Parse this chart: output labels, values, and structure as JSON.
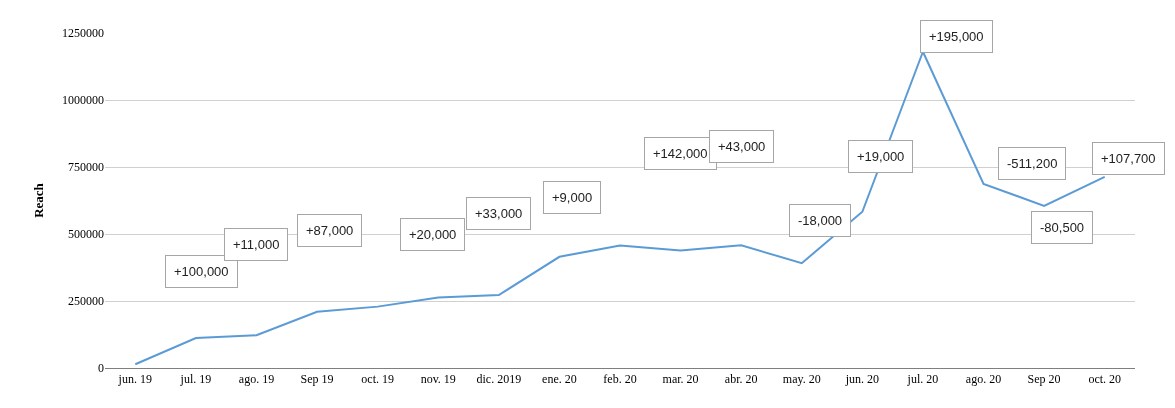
{
  "chart_data": {
    "type": "line",
    "ylabel": "Reach",
    "categories": [
      "jun. 19",
      "jul. 19",
      "ago. 19",
      "Sep 19",
      "oct. 19",
      "nov. 19",
      "dic. 2019",
      "ene. 20",
      "feb. 20",
      "mar. 20",
      "abr. 20",
      "may. 20",
      "jun. 20",
      "jul. 20",
      "ago. 20",
      "Sep 20",
      "oct. 20"
    ],
    "series": [
      {
        "color": "#5b9bd5",
        "values": [
          14000,
          112000,
          122000,
          210000,
          229000,
          263000,
          272000,
          415000,
          457000,
          438000,
          458000,
          391000,
          583000,
          1180000,
          687000,
          605000,
          713000
        ]
      }
    ],
    "ylim": [
      0,
      1250000
    ],
    "yticks": [
      0,
      250000,
      500000,
      750000,
      1000000,
      1250000
    ],
    "grid": "y",
    "marker": "none",
    "line_style": "solid",
    "annotations": [
      "+100,000",
      "+11,000",
      "+87,000",
      "+20,000",
      "+33,000",
      "+9,000",
      "+142,000",
      "+43,000",
      "-18,000",
      "+19,000",
      "+195,000",
      "-511,200",
      "-80,500",
      "+107,700"
    ]
  }
}
